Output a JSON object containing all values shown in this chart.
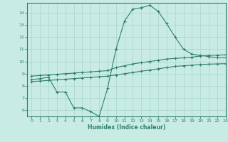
{
  "x_curve": [
    0,
    1,
    2,
    3,
    4,
    5,
    6,
    7,
    8,
    9,
    10,
    11,
    12,
    13,
    14,
    15,
    16,
    17,
    18,
    19,
    20,
    21,
    22,
    23
  ],
  "y_curve": [
    8.5,
    8.6,
    8.7,
    7.5,
    7.5,
    6.2,
    6.2,
    5.9,
    5.5,
    7.8,
    11.0,
    13.3,
    14.3,
    14.4,
    14.6,
    14.1,
    13.1,
    12.0,
    11.0,
    10.6,
    10.5,
    10.4,
    10.3,
    10.3
  ],
  "x_upper": [
    0,
    1,
    2,
    3,
    4,
    5,
    6,
    7,
    8,
    9,
    10,
    11,
    12,
    13,
    14,
    15,
    16,
    17,
    18,
    19,
    20,
    21,
    22,
    23
  ],
  "y_upper": [
    8.8,
    8.85,
    8.9,
    8.95,
    9.0,
    9.05,
    9.1,
    9.15,
    9.2,
    9.25,
    9.5,
    9.65,
    9.8,
    9.9,
    10.0,
    10.1,
    10.2,
    10.25,
    10.3,
    10.35,
    10.45,
    10.5,
    10.52,
    10.55
  ],
  "x_lower": [
    0,
    1,
    2,
    3,
    4,
    5,
    6,
    7,
    8,
    9,
    10,
    11,
    12,
    13,
    14,
    15,
    16,
    17,
    18,
    19,
    20,
    21,
    22,
    23
  ],
  "y_lower": [
    8.35,
    8.4,
    8.45,
    8.5,
    8.55,
    8.6,
    8.65,
    8.7,
    8.75,
    8.8,
    8.9,
    9.0,
    9.1,
    9.2,
    9.3,
    9.4,
    9.5,
    9.6,
    9.65,
    9.7,
    9.75,
    9.78,
    9.8,
    9.82
  ],
  "line_color": "#2e7d6e",
  "bg_color": "#c8ece4",
  "grid_color": "#a8d4cc",
  "xlabel": "Humidex (Indice chaleur)",
  "xlim": [
    -0.5,
    23
  ],
  "ylim": [
    5.5,
    14.8
  ],
  "yticks": [
    6,
    7,
    8,
    9,
    10,
    11,
    12,
    13,
    14
  ],
  "xticks": [
    0,
    1,
    2,
    3,
    4,
    5,
    6,
    7,
    8,
    9,
    10,
    11,
    12,
    13,
    14,
    15,
    16,
    17,
    18,
    19,
    20,
    21,
    22,
    23
  ]
}
